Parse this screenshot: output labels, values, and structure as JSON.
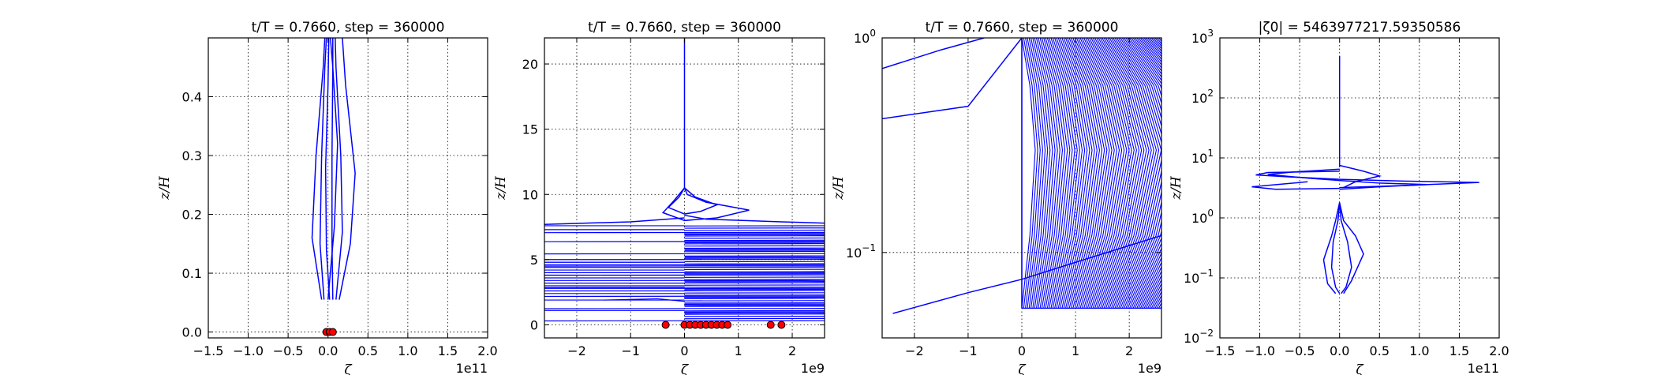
{
  "chart_data": [
    {
      "type": "line",
      "title": "t/T = 0.7660, step = 360000",
      "xlabel": "ζ",
      "ylabel": "z/H",
      "x_offset_label": "1e11",
      "xlim": [
        -1.5,
        2.0
      ],
      "ylim": [
        -0.01,
        0.5
      ],
      "xticks": [
        "−1.5",
        "−1.0",
        "−0.5",
        "0.0",
        "0.5",
        "1.0",
        "1.5",
        "2.0"
      ],
      "yticks": [
        "0.0",
        "0.1",
        "0.2",
        "0.3",
        "0.4"
      ],
      "grid": true,
      "line_color": "#0000ff",
      "marker_color": "#ff0000",
      "series": [
        {
          "x": [
            0.06,
            0.05,
            0.05,
            0.06,
            0.06
          ],
          "y": [
            0.055,
            0.15,
            0.3,
            0.45,
            0.5
          ]
        },
        {
          "x": [
            0.02,
            -0.02,
            -0.03,
            0.0,
            0.01
          ],
          "y": [
            0.055,
            0.14,
            0.28,
            0.42,
            0.5
          ]
        },
        {
          "x": [
            -0.05,
            -0.1,
            -0.08,
            -0.04,
            -0.02
          ],
          "y": [
            0.055,
            0.15,
            0.3,
            0.45,
            0.5
          ]
        },
        {
          "x": [
            0.1,
            0.18,
            0.16,
            0.1,
            0.09
          ],
          "y": [
            0.055,
            0.17,
            0.3,
            0.45,
            0.5
          ]
        },
        {
          "x": [
            -0.08,
            -0.2,
            -0.15,
            -0.06,
            -0.04
          ],
          "y": [
            0.055,
            0.16,
            0.3,
            0.45,
            0.5
          ]
        },
        {
          "x": [
            0.14,
            0.28,
            0.34,
            0.22,
            0.18
          ],
          "y": [
            0.055,
            0.15,
            0.27,
            0.42,
            0.5
          ]
        },
        {
          "x": [
            0.0,
            0.08,
            0.12,
            0.06,
            0.03
          ],
          "y": [
            0.055,
            0.18,
            0.32,
            0.45,
            0.5
          ]
        }
      ],
      "markers": {
        "x": [
          -0.02,
          0.02,
          0.06
        ],
        "y": [
          0.0,
          0.0,
          0.0
        ]
      }
    },
    {
      "type": "line",
      "title": "t/T = 0.7660, step = 360000",
      "xlabel": "ζ",
      "ylabel": "z/H",
      "x_offset_label": "1e9",
      "xlim": [
        -2.6,
        2.6
      ],
      "ylim": [
        -1.0,
        22.0
      ],
      "xticks": [
        "−2",
        "−1",
        "0",
        "1",
        "2"
      ],
      "yticks": [
        "0",
        "5",
        "10",
        "15",
        "20"
      ],
      "grid": true,
      "line_color": "#0000ff",
      "marker_color": "#ff0000",
      "series": [
        {
          "x": [
            0.0,
            0.0,
            0.0
          ],
          "y": [
            10.5,
            15,
            22
          ]
        },
        {
          "x": [
            0.0,
            0.05,
            0.4,
            1.2,
            0.6,
            0.0,
            -0.4,
            -0.2,
            0.0
          ],
          "y": [
            10.5,
            10.0,
            9.4,
            8.8,
            8.2,
            8.0,
            8.6,
            9.5,
            10.5
          ]
        },
        {
          "x": [
            0.0,
            0.2,
            0.6,
            0.3,
            0.0,
            -0.3,
            -0.1,
            0.0
          ],
          "y": [
            10.5,
            9.8,
            9.2,
            8.7,
            8.5,
            9.0,
            9.8,
            10.5
          ]
        },
        {
          "x": [
            0.0,
            0.4,
            1.8,
            2.6
          ],
          "y": [
            8.4,
            8.1,
            7.9,
            7.8
          ]
        },
        {
          "x": [
            0.0,
            -1.0,
            -2.6
          ],
          "y": [
            8.2,
            7.9,
            7.7
          ]
        }
      ],
      "markers": {
        "x": [
          -0.35,
          0.0,
          0.1,
          0.2,
          0.3,
          0.4,
          0.5,
          0.6,
          0.7,
          0.8,
          1.6,
          1.8
        ],
        "y": [
          0,
          0,
          0,
          0,
          0,
          0,
          0,
          0,
          0,
          0,
          0,
          0
        ]
      }
    },
    {
      "type": "line",
      "title": "t/T = 0.7660, step = 360000",
      "xlabel": "ζ",
      "ylabel": "z/H",
      "x_offset_label": "1e9",
      "xlim": [
        -2.6,
        2.6
      ],
      "ylim": [
        0.04,
        1.0
      ],
      "yscale": "log",
      "xticks": [
        "−2",
        "−1",
        "0",
        "1",
        "2"
      ],
      "yticks": [
        "10^-1",
        "10^0"
      ],
      "grid": true,
      "line_color": "#0000ff",
      "series": [
        {
          "x": [
            -2.6,
            -1.0,
            0.0
          ],
          "y": [
            0.42,
            0.48,
            1.0
          ]
        },
        {
          "x": [
            -2.6,
            -1.5,
            -0.7
          ],
          "y": [
            0.72,
            0.88,
            1.0
          ]
        },
        {
          "x": [
            -2.4,
            -1.0,
            0.0,
            1.0,
            2.6
          ],
          "y": [
            0.052,
            0.065,
            0.075,
            0.09,
            0.12
          ]
        }
      ]
    },
    {
      "type": "line",
      "title": "|ζ0| = 5463977217.59350586",
      "xlabel": "ζ",
      "ylabel": "z/H",
      "x_offset_label": "1e11",
      "xlim": [
        -1.5,
        2.0
      ],
      "ylim": [
        0.01,
        1000
      ],
      "yscale": "log",
      "xticks": [
        "−1.5",
        "−1.0",
        "−0.5",
        "0.0",
        "0.5",
        "1.0",
        "1.5",
        "2.0"
      ],
      "yticks": [
        "10^-2",
        "10^-1",
        "10^0",
        "10^1",
        "10^2",
        "10^3"
      ],
      "grid": true,
      "line_color": "#0000ff",
      "series": [
        {
          "x": [
            0.0,
            0.0,
            0.0
          ],
          "y": [
            7,
            100,
            500
          ]
        },
        {
          "x": [
            0.0,
            -0.9,
            -1.05,
            -0.6,
            0.0,
            0.8,
            1.75,
            0.9,
            0.0
          ],
          "y": [
            6,
            5.7,
            5.2,
            4.8,
            4.4,
            4.1,
            3.9,
            3.5,
            3.2
          ]
        },
        {
          "x": [
            0.0,
            -0.6,
            -0.9,
            -0.4,
            0.0,
            0.5,
            1.1,
            0.5,
            0.0
          ],
          "y": [
            6.5,
            5.8,
            5.3,
            4.6,
            4.2,
            3.8,
            3.6,
            3.3,
            3.0
          ]
        },
        {
          "x": [
            -0.4,
            -1.1,
            -0.8,
            0.0
          ],
          "y": [
            4.0,
            3.3,
            3.0,
            3.1
          ]
        },
        {
          "x": [
            0.0,
            0.3,
            0.5,
            0.2,
            0.05
          ],
          "y": [
            7.5,
            6.0,
            5.0,
            4.0,
            3.2
          ]
        },
        {
          "x": [
            0.0,
            -0.05,
            -0.1,
            -0.2,
            -0.15,
            -0.05
          ],
          "y": [
            1.8,
            0.9,
            0.5,
            0.2,
            0.08,
            0.055
          ]
        },
        {
          "x": [
            0.0,
            0.05,
            0.2,
            0.3,
            0.15,
            0.05
          ],
          "y": [
            1.8,
            0.9,
            0.5,
            0.25,
            0.09,
            0.055
          ]
        },
        {
          "x": [
            0.0,
            -0.02,
            -0.08,
            -0.1,
            -0.05,
            0.0
          ],
          "y": [
            1.8,
            0.9,
            0.4,
            0.15,
            0.07,
            0.055
          ]
        },
        {
          "x": [
            0.0,
            0.02,
            0.1,
            0.15,
            0.08,
            0.02
          ],
          "y": [
            1.8,
            0.9,
            0.4,
            0.15,
            0.07,
            0.055
          ]
        }
      ]
    }
  ]
}
